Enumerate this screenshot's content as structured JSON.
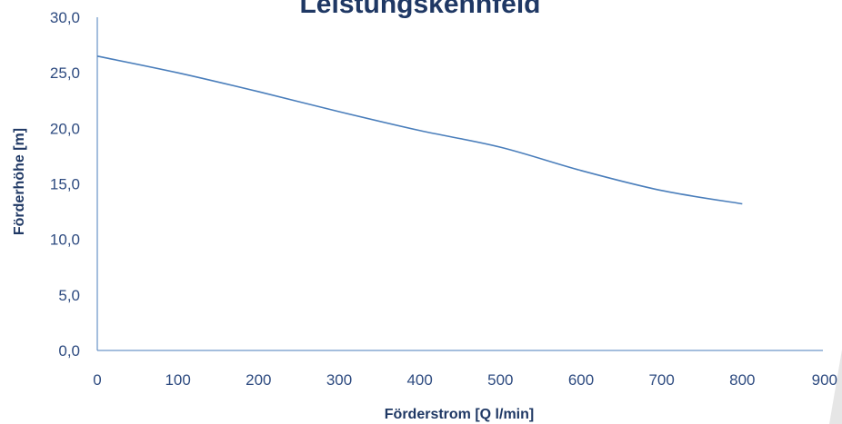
{
  "chart_data": {
    "type": "line",
    "title": "Leistungskennfeld",
    "xlabel": "Förderstrom [Q l/min]",
    "ylabel": "Förderhöhe [m]",
    "xlim": [
      0,
      900
    ],
    "ylim": [
      0,
      30
    ],
    "x_ticks": [
      "0",
      "100",
      "200",
      "300",
      "400",
      "500",
      "600",
      "700",
      "800",
      "900"
    ],
    "y_ticks": [
      "0,0",
      "5,0",
      "10,0",
      "15,0",
      "20,0",
      "25,0",
      "30,0"
    ],
    "grid": false,
    "series": [
      {
        "color": "#4a7ebb",
        "x": [
          0,
          100,
          200,
          300,
          400,
          500,
          600,
          700,
          800
        ],
        "y": [
          26.5,
          25.0,
          23.3,
          21.5,
          19.8,
          18.3,
          16.2,
          14.4,
          13.2
        ]
      }
    ],
    "colors": {
      "line": "#4a7ebb",
      "axis": "#4a7ebb",
      "text": "#1f3864",
      "ticks": "#2e4b80",
      "corner_accent": "#e6e6e6"
    }
  }
}
